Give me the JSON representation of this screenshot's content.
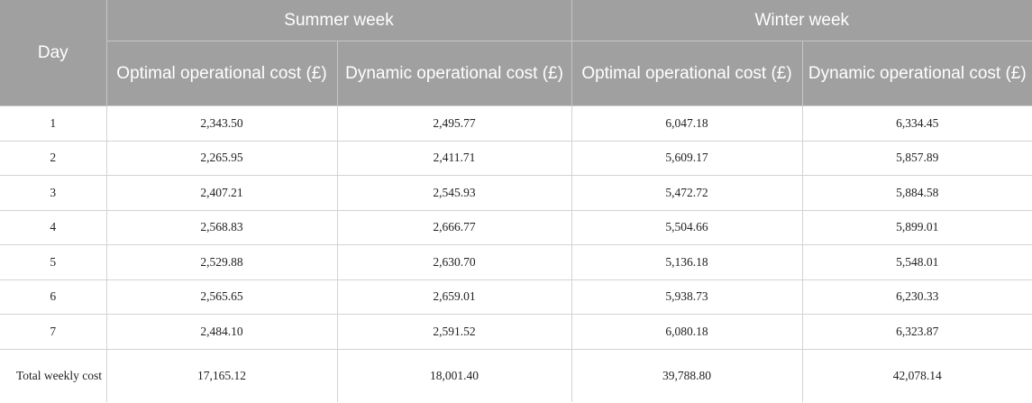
{
  "header": {
    "day": "Day",
    "group_summer": "Summer week",
    "group_winter": "Winter week",
    "optimal_cost": "Optimal operational cost (£)",
    "dynamic_cost": "Dynamic operational cost (£)"
  },
  "rows": [
    {
      "day": "1",
      "summer_optimal": "2,343.50",
      "summer_dynamic": "2,495.77",
      "winter_optimal": "6,047.18",
      "winter_dynamic": "6,334.45"
    },
    {
      "day": "2",
      "summer_optimal": "2,265.95",
      "summer_dynamic": "2,411.71",
      "winter_optimal": "5,609.17",
      "winter_dynamic": "5,857.89"
    },
    {
      "day": "3",
      "summer_optimal": "2,407.21",
      "summer_dynamic": "2,545.93",
      "winter_optimal": "5,472.72",
      "winter_dynamic": "5,884.58"
    },
    {
      "day": "4",
      "summer_optimal": "2,568.83",
      "summer_dynamic": "2,666.77",
      "winter_optimal": "5,504.66",
      "winter_dynamic": "5,899.01"
    },
    {
      "day": "5",
      "summer_optimal": "2,529.88",
      "summer_dynamic": "2,630.70",
      "winter_optimal": "5,136.18",
      "winter_dynamic": "5,548.01"
    },
    {
      "day": "6",
      "summer_optimal": "2,565.65",
      "summer_dynamic": "2,659.01",
      "winter_optimal": "5,938.73",
      "winter_dynamic": "6,230.33"
    },
    {
      "day": "7",
      "summer_optimal": "2,484.10",
      "summer_dynamic": "2,591.52",
      "winter_optimal": "6,080.18",
      "winter_dynamic": "6,323.87"
    }
  ],
  "total": {
    "label": "Total weekly cost",
    "summer_optimal": "17,165.12",
    "summer_dynamic": "18,001.40",
    "winter_optimal": "39,788.80",
    "winter_dynamic": "42,078.14"
  },
  "colors": {
    "header_bg": "#a0a0a0",
    "header_text": "#ffffff",
    "grid_line": "#d3d3d3"
  }
}
